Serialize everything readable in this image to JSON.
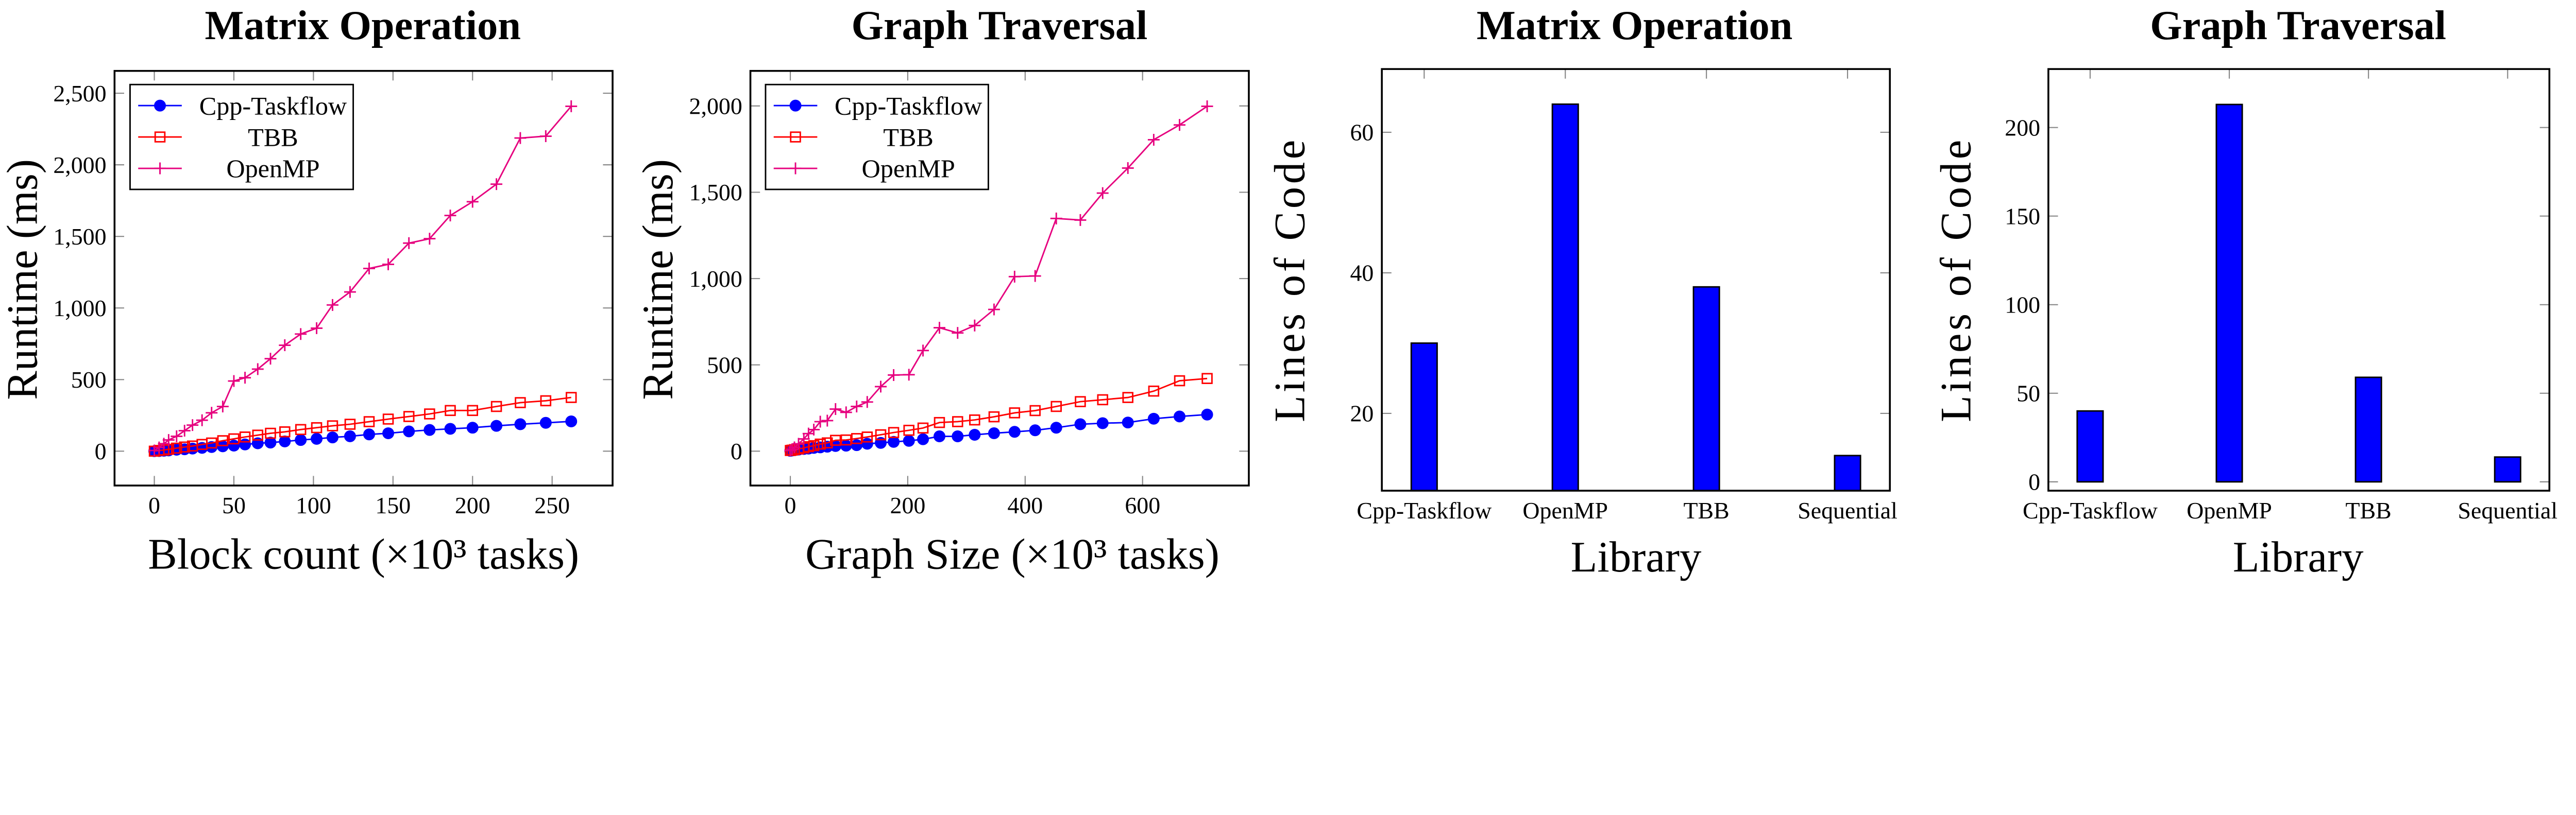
{
  "colors": {
    "cpp_taskflow": "#0000ff",
    "tbb": "#ff0000",
    "openmp": "#e6007e",
    "bar": "#0000ff"
  },
  "chart_data": [
    {
      "type": "line",
      "title": "Matrix Operation",
      "xlabel": "Block count (×10³ tasks)",
      "ylabel": "Runtime (ms)",
      "xlim": [
        -25,
        288
      ],
      "ylim": [
        -240,
        2656
      ],
      "xticks": [
        0,
        50,
        100,
        150,
        200,
        250
      ],
      "xtick_labels": [
        "0",
        "50",
        "100",
        "150",
        "200",
        "250"
      ],
      "yticks": [
        0,
        500,
        1000,
        1500,
        2000,
        2500
      ],
      "ytick_labels": [
        "0",
        "500",
        "1,000",
        "1,500",
        "2,000",
        "2,500"
      ],
      "legend": "top-left",
      "grid": false,
      "x": [
        0,
        3,
        6,
        9,
        14,
        19,
        24,
        30,
        36,
        43,
        50,
        57,
        65,
        73,
        82,
        92,
        102,
        112,
        123,
        135,
        147,
        160,
        173,
        186,
        200,
        215,
        230,
        246,
        262
      ],
      "series": [
        {
          "name": "Cpp-Taskflow",
          "marker": "filled-circle",
          "values": [
            0,
            1,
            3,
            5,
            10,
            13,
            18,
            23,
            29,
            34,
            39,
            47,
            55,
            60,
            68,
            78,
            86,
            96,
            104,
            117,
            125,
            138,
            148,
            156,
            164,
            177,
            188,
            198,
            208
          ]
        },
        {
          "name": "TBB",
          "marker": "open-square",
          "values": [
            0,
            5,
            8,
            13,
            21,
            29,
            36,
            47,
            57,
            73,
            86,
            99,
            112,
            125,
            135,
            151,
            164,
            177,
            188,
            206,
            224,
            242,
            260,
            284,
            284,
            312,
            339,
            352,
            375
          ]
        },
        {
          "name": "OpenMP",
          "marker": "plus",
          "values": [
            5,
            26,
            52,
            78,
            104,
            143,
            182,
            216,
            268,
            312,
            490,
            513,
            573,
            646,
            740,
            818,
            859,
            1021,
            1112,
            1276,
            1305,
            1453,
            1484,
            1646,
            1742,
            1865,
            2187,
            2200,
            2409
          ]
        }
      ]
    },
    {
      "type": "line",
      "title": "Graph Traversal",
      "xlabel": "Graph Size (×10³ tasks)",
      "ylabel": "Runtime (ms)",
      "xlim": [
        -68,
        781
      ],
      "ylim": [
        -199,
        2203
      ],
      "xticks": [
        0,
        200,
        400,
        600
      ],
      "xtick_labels": [
        "0",
        "200",
        "400",
        "600"
      ],
      "yticks": [
        0,
        500,
        1000,
        1500,
        2000
      ],
      "ytick_labels": [
        "0",
        "500",
        "1,000",
        "1,500",
        "2,000"
      ],
      "legend": "top-left",
      "grid": false,
      "x": [
        0,
        3,
        7,
        14,
        23,
        31,
        40,
        51,
        63,
        77,
        95,
        113,
        131,
        154,
        176,
        202,
        226,
        254,
        285,
        314,
        347,
        382,
        417,
        453,
        494,
        532,
        575,
        619,
        663,
        710
      ],
      "series": [
        {
          "name": "Cpp-Taskflow",
          "marker": "filled-circle",
          "values": [
            2,
            4,
            6,
            9,
            13,
            15,
            19,
            22,
            26,
            30,
            32,
            35,
            43,
            48,
            54,
            60,
            69,
            86,
            86,
            95,
            104,
            112,
            121,
            136,
            156,
            162,
            166,
            188,
            201,
            212
          ]
        },
        {
          "name": "TBB",
          "marker": "open-square",
          "values": [
            4,
            6,
            9,
            13,
            19,
            26,
            32,
            41,
            48,
            63,
            65,
            73,
            82,
            95,
            108,
            121,
            134,
            166,
            171,
            181,
            199,
            222,
            235,
            259,
            287,
            298,
            311,
            348,
            408,
            421
          ]
        },
        {
          "name": "OpenMP",
          "marker": "plus",
          "values": [
            4,
            11,
            22,
            43,
            71,
            102,
            125,
            171,
            177,
            244,
            225,
            259,
            285,
            374,
            441,
            443,
            583,
            715,
            685,
            728,
            821,
            1011,
            1015,
            1348,
            1339,
            1495,
            1640,
            1804,
            1890,
            1998
          ]
        }
      ]
    },
    {
      "type": "bar",
      "title": "Matrix Operation",
      "xlabel": "Library",
      "ylabel": "Lines of Code",
      "categories": [
        "Cpp-Taskflow",
        "OpenMP",
        "TBB",
        "Sequential"
      ],
      "values": [
        30,
        64,
        38,
        14
      ],
      "ylim": [
        9,
        69
      ],
      "yticks": [
        20,
        40,
        60
      ],
      "ytick_labels": [
        "20",
        "40",
        "60"
      ],
      "grid": false
    },
    {
      "type": "bar",
      "title": "Graph Traversal",
      "xlabel": "Library",
      "ylabel": "Lines of Code",
      "categories": [
        "Cpp-Taskflow",
        "OpenMP",
        "TBB",
        "Sequential"
      ],
      "values": [
        40,
        213,
        59,
        14
      ],
      "ylim": [
        -5,
        233
      ],
      "yticks": [
        0,
        50,
        100,
        150,
        200
      ],
      "ytick_labels": [
        "0",
        "50",
        "100",
        "150",
        "200"
      ],
      "grid": false
    }
  ]
}
